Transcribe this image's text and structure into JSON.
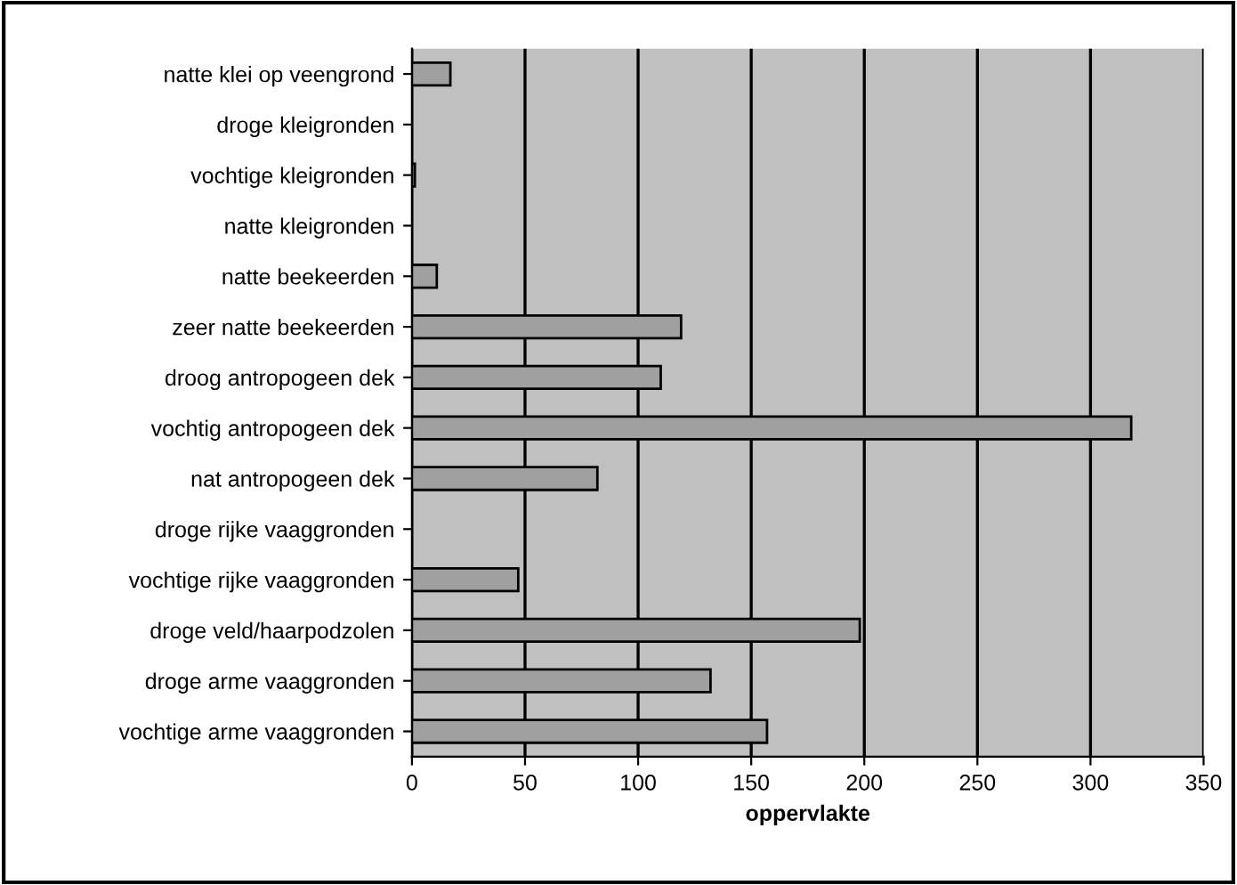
{
  "chart_data": {
    "type": "bar",
    "orientation": "horizontal",
    "xlabel": "oppervlakte",
    "categories": [
      "natte klei op veengrond",
      "droge kleigronden",
      "vochtige kleigronden",
      "natte kleigronden",
      "natte beekeerden",
      "zeer natte beekeerden",
      "droog antropogeen dek",
      "vochtig antropogeen dek",
      "nat antropogeen dek",
      "droge rijke vaaggronden",
      "vochtige rijke vaaggronden",
      "droge veld/haarpodzolen",
      "droge arme vaaggronden",
      "vochtige arme vaaggronden"
    ],
    "values": [
      17,
      0,
      1.3,
      0,
      11,
      119,
      110,
      318,
      82,
      0,
      47,
      198,
      132,
      157
    ],
    "color": "#a0a0a0",
    "xlim": [
      0,
      350
    ],
    "xticks": [
      0,
      50,
      100,
      150,
      200,
      250,
      300,
      350
    ],
    "grid": "x"
  }
}
